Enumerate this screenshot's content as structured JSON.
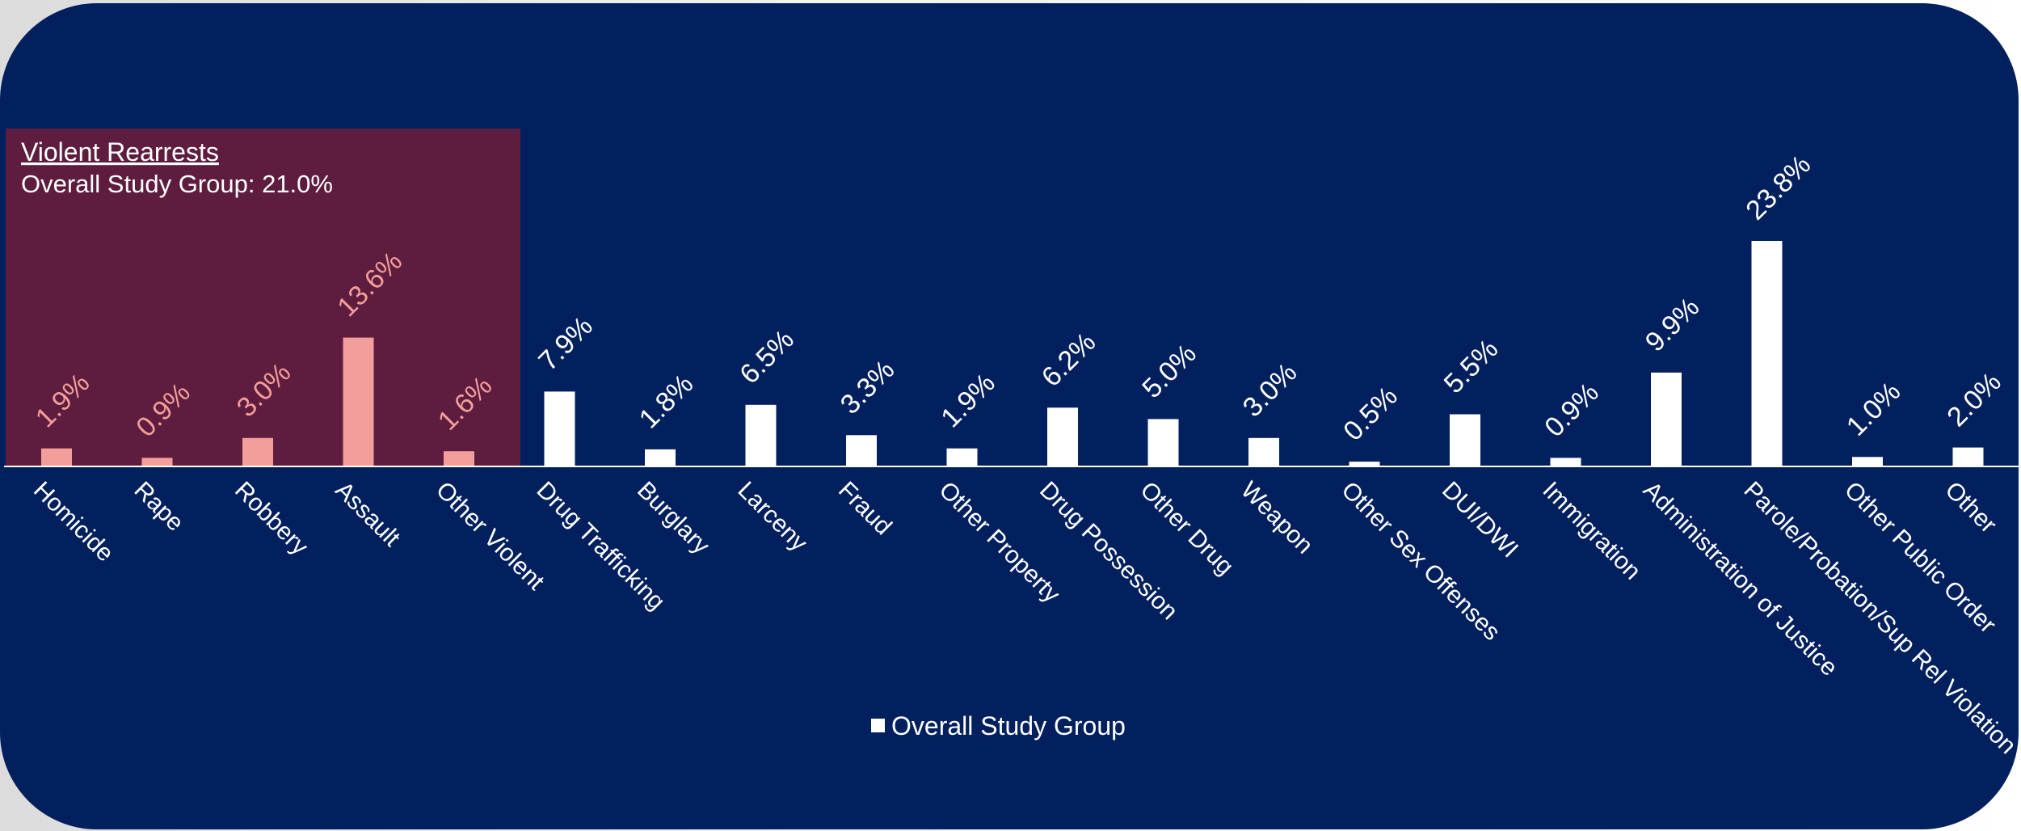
{
  "chart_data": {
    "type": "bar",
    "categories": [
      "Homicide",
      "Rape",
      "Robbery",
      "Assault",
      "Other Violent",
      "Drug Trafficking",
      "Burglary",
      "Larceny",
      "Fraud",
      "Other Property",
      "Drug Possession",
      "Other Drug",
      "Weapon",
      "Other Sex Offenses",
      "DUI/DWI",
      "Immigration",
      "Administration of Justice",
      "Parole/Probation/Sup Rel Violation",
      "Other Public Order",
      "Other"
    ],
    "series": [
      {
        "name": "Overall Study Group",
        "values": [
          1.9,
          0.9,
          3.0,
          13.6,
          1.6,
          7.9,
          1.8,
          6.5,
          3.3,
          1.9,
          6.2,
          5.0,
          3.0,
          0.5,
          5.5,
          0.9,
          9.9,
          23.8,
          1.0,
          2.0
        ],
        "data_labels": [
          "1.9%",
          "0.9%",
          "3.0%",
          "13.6%",
          "1.6%",
          "7.9%",
          "1.8%",
          "6.5%",
          "3.3%",
          "1.9%",
          "6.2%",
          "5.0%",
          "3.0%",
          "0.5%",
          "5.5%",
          "0.9%",
          "9.9%",
          "23.8%",
          "1.0%",
          "2.0%"
        ]
      }
    ],
    "highlighted_categories": [
      "Homicide",
      "Rape",
      "Robbery",
      "Assault",
      "Other Violent"
    ],
    "ylim": [
      0,
      25
    ],
    "grid": false,
    "legend": {
      "position": "bottom",
      "entries": [
        "Overall Study Group"
      ]
    },
    "annotation": {
      "title": "Violent Rearrests",
      "text": "Overall Study Group:  21.0%"
    }
  },
  "colors": {
    "background": "#02205e",
    "bar": "#ffffff",
    "highlight_bar": "#f29e9a",
    "highlight_box": "#5e1d3f",
    "text": "#ffffff"
  }
}
